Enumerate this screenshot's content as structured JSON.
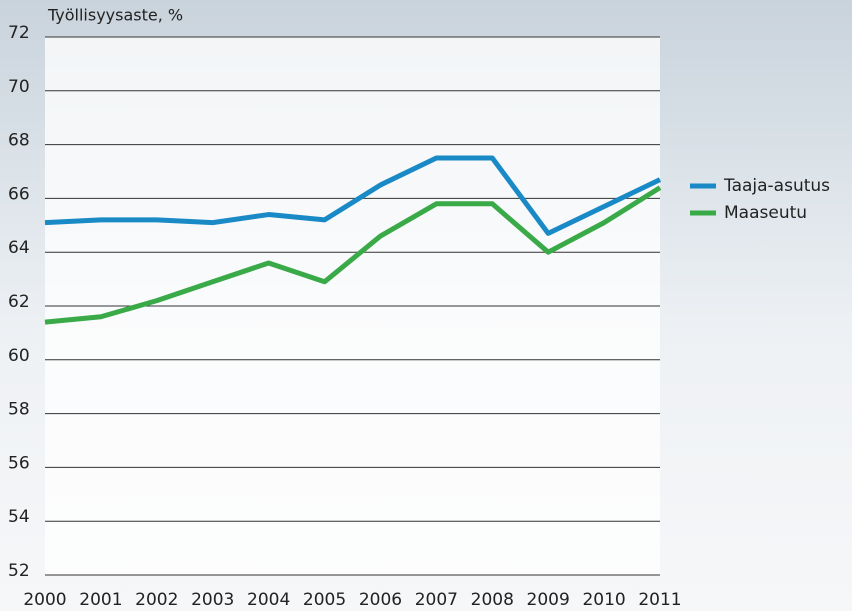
{
  "chart_data": {
    "type": "line",
    "y_label": "Työllisyysaste, %",
    "x": [
      2000,
      2001,
      2002,
      2003,
      2004,
      2005,
      2006,
      2007,
      2008,
      2009,
      2010,
      2011
    ],
    "xlim": [
      2000,
      2011
    ],
    "xticks": [
      2000,
      2001,
      2002,
      2003,
      2004,
      2005,
      2006,
      2007,
      2008,
      2009,
      2010,
      2011
    ],
    "ylim": [
      52,
      72
    ],
    "yticks": [
      52,
      54,
      56,
      58,
      60,
      62,
      64,
      66,
      68,
      70,
      72
    ],
    "grid": true,
    "legend": "right",
    "series": [
      {
        "name": "Taaja-asutus",
        "color": "#1a8ac6",
        "values": [
          65.1,
          65.2,
          65.2,
          65.1,
          65.4,
          65.2,
          66.5,
          67.5,
          67.5,
          64.7,
          65.7,
          66.7
        ]
      },
      {
        "name": "Maaseutu",
        "color": "#3aaa48",
        "values": [
          61.4,
          61.6,
          62.2,
          62.9,
          63.6,
          62.9,
          64.6,
          65.8,
          65.8,
          64.0,
          65.1,
          66.4
        ]
      }
    ]
  }
}
